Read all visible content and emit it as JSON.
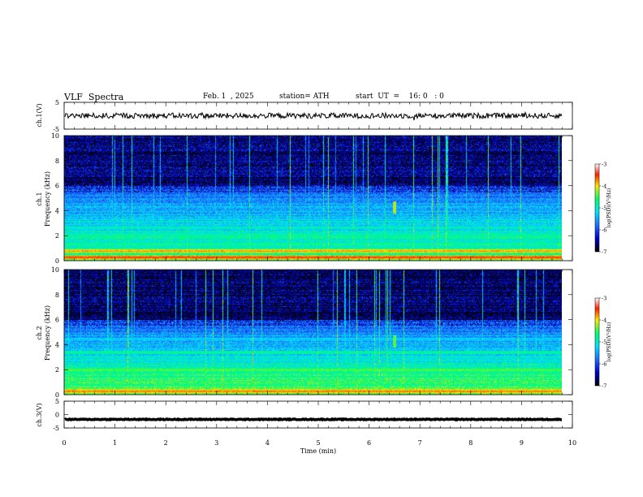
{
  "header": {
    "title": "VLF  Spectra",
    "date": "Feb. 1  , 2025",
    "station": "station= ATH",
    "start_ut": "start  UT  =    16: 0   : 0"
  },
  "colors": {
    "scale": [
      "#000000",
      "#0000c8",
      "#1e6cff",
      "#00e0ff",
      "#00ff66",
      "#ffe600",
      "#ff2000",
      "#ffffff"
    ],
    "trace": "#000000"
  },
  "chart_data": [
    {
      "type": "line",
      "panel": "ch1-waveform",
      "ylabel": "ch.1(V)",
      "ylim": [
        -5,
        5
      ],
      "y_ticks": [
        "5",
        "-5"
      ],
      "description_values": {
        "baseline": 0,
        "amplitude_approx": 1
      }
    },
    {
      "type": "heatmap",
      "panel": "ch1-spectrogram",
      "ylabel_lines": [
        "ch.1",
        "Frequency  (kHz)"
      ],
      "ylim": [
        0,
        10
      ],
      "y_ticks": [
        "0",
        "2",
        "4",
        "6",
        "8",
        "10"
      ],
      "colorbar": {
        "label": "log(PSD)(V²/Hz)",
        "range": [
          -7,
          -3
        ],
        "ticks": [
          "-3",
          "-4",
          "-5",
          "-6",
          "-7"
        ]
      },
      "bands": [
        {
          "freq_khz": 0.3,
          "level": -3.4
        },
        {
          "freq_khz": 0.8,
          "level": -3.7
        },
        {
          "freq_khz": 1.3,
          "level": -4.8
        },
        {
          "freq_khz": 2.2,
          "level": -5.3
        },
        {
          "freq_khz": 4.0,
          "level": -5.6
        }
      ],
      "event": {
        "time_min": 6.5,
        "freq_range_khz": [
          3.8,
          4.8
        ],
        "level": -4.2
      }
    },
    {
      "type": "heatmap",
      "panel": "ch2-spectrogram",
      "ylabel_lines": [
        "ch.2",
        "Frequency  (kHz)"
      ],
      "ylim": [
        0,
        10
      ],
      "y_ticks": [
        "0",
        "2",
        "4",
        "6",
        "8",
        "10"
      ],
      "colorbar": {
        "label": "log(PSD)(V²/Hz)",
        "range": [
          -7,
          -3
        ],
        "ticks": [
          "-3",
          "-4",
          "-5",
          "-6",
          "-7"
        ]
      },
      "bands": [
        {
          "freq_khz": 0.3,
          "level": -3.6
        },
        {
          "freq_khz": 2.0,
          "level": -4.3
        },
        {
          "freq_khz": 3.4,
          "level": -4.6
        },
        {
          "freq_khz": 4.5,
          "level": -5.2
        }
      ],
      "event": {
        "time_min": 6.5,
        "freq_range_khz": [
          3.8,
          4.8
        ],
        "level": -4.4
      }
    },
    {
      "type": "line",
      "panel": "ch3-waveform",
      "ylabel": "ch.3(V)",
      "ylim": [
        -5,
        5
      ],
      "y_ticks": [
        "5",
        "0",
        "-5"
      ],
      "description_values": {
        "baseline": -1.8,
        "amplitude_approx": 0.15
      }
    },
    {
      "type": "axis",
      "panel": "time-axis",
      "xlabel": "Time  (min)",
      "xlim": [
        0,
        10
      ],
      "x_ticks": [
        "0",
        "1",
        "2",
        "3",
        "4",
        "5",
        "6",
        "7",
        "8",
        "9",
        "10"
      ],
      "data_end_min": 9.8
    }
  ]
}
